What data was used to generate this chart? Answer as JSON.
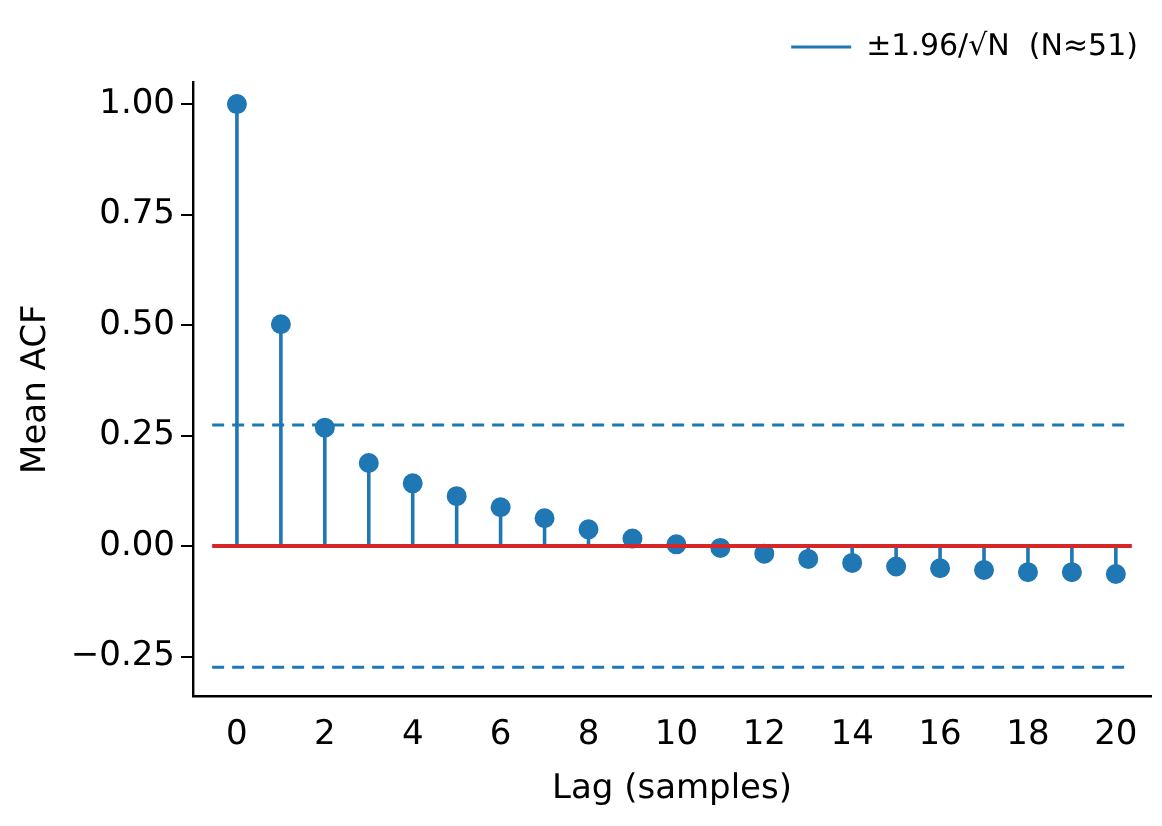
{
  "chart_data": {
    "type": "lollipop",
    "xlabel": "Lag (samples)",
    "ylabel": "Mean ACF",
    "x": [
      0,
      1,
      2,
      3,
      4,
      5,
      6,
      7,
      8,
      9,
      10,
      11,
      12,
      13,
      14,
      15,
      16,
      17,
      18,
      19,
      20
    ],
    "series": [
      {
        "color": "#1f77b4",
        "values": [
          1.0,
          0.502,
          0.268,
          0.188,
          0.142,
          0.113,
          0.088,
          0.063,
          0.038,
          0.017,
          0.004,
          -0.004,
          -0.017,
          -0.029,
          -0.038,
          -0.046,
          -0.05,
          -0.054,
          -0.059,
          -0.059,
          -0.063
        ]
      }
    ],
    "xlim": [
      -1,
      20.8
    ],
    "xticks": [
      0,
      2,
      4,
      6,
      8,
      10,
      12,
      14,
      16,
      18,
      20
    ],
    "ylim": [
      -0.34,
      1.05
    ],
    "yticks": [
      {
        "value": -0.25,
        "label": "−0.25"
      },
      {
        "value": 0,
        "label": "0.00"
      },
      {
        "value": 0.25,
        "label": "0.25"
      },
      {
        "value": 0.5,
        "label": "0.50"
      },
      {
        "value": 0.75,
        "label": "0.75"
      },
      {
        "value": 1,
        "label": "1.00"
      }
    ],
    "ref_lines": [
      {
        "axis": "y",
        "value": 0.274,
        "label": "±1.96/√N  (N≈51)",
        "color": "#1f77b4",
        "line_style": "dashed"
      },
      {
        "axis": "y",
        "value": -0.274,
        "label": null,
        "color": "#1f77b4",
        "line_style": "dashed"
      },
      {
        "axis": "y",
        "value": 0,
        "label": null,
        "color": "#d62728",
        "line_style": "solid"
      }
    ],
    "marker": "circle",
    "grid": false,
    "legend": "top right"
  }
}
